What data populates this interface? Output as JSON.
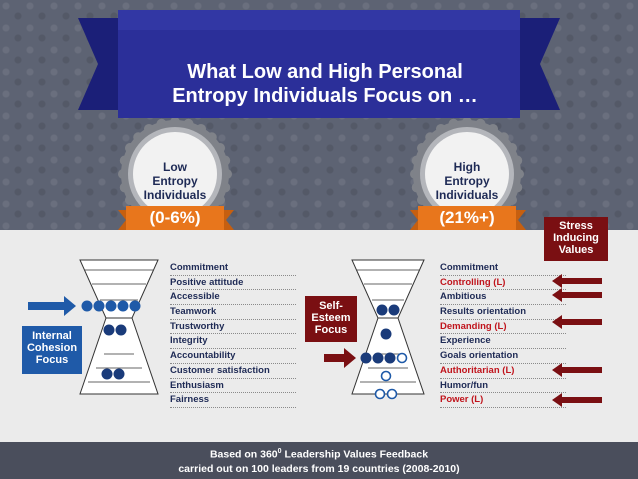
{
  "title": {
    "line1": "What Low and High Personal",
    "line2": "Entropy Individuals Focus on …"
  },
  "low_seal": {
    "line1": "Low",
    "line2": "Entropy",
    "line3": "Individuals",
    "range": "(0-6%)"
  },
  "high_seal": {
    "line1": "High",
    "line2": "Entropy",
    "line3": "Individuals",
    "range": "(21%+)"
  },
  "stress_box": {
    "line1": "Stress",
    "line2": "Inducing",
    "line3": "Values"
  },
  "internal_box": {
    "line1": "Internal",
    "line2": "Cohesion",
    "line3": "Focus"
  },
  "self_box": {
    "line1": "Self-",
    "line2": "Esteem",
    "line3": "Focus"
  },
  "low_values": [
    "Commitment",
    "Positive attitude",
    "Accessible",
    "Teamwork",
    "Trustworthy",
    "Integrity",
    "Accountability",
    "Customer satisfaction",
    "Enthusiasm",
    "Fairness"
  ],
  "high_values": [
    {
      "label": "Commitment",
      "stress": false
    },
    {
      "label": "Controlling (L)",
      "stress": true
    },
    {
      "label": "Ambitious",
      "stress": false
    },
    {
      "label": "Results orientation",
      "stress": false
    },
    {
      "label": "Demanding (L)",
      "stress": true
    },
    {
      "label": "Experience",
      "stress": false
    },
    {
      "label": "Goals orientation",
      "stress": false
    },
    {
      "label": "Authoritarian (L)",
      "stress": true
    },
    {
      "label": "Humor/fun",
      "stress": false
    },
    {
      "label": "Power (L)",
      "stress": true
    }
  ],
  "footer": {
    "line1": "Based on 360",
    "line1_sup": "0",
    "line1_tail": " Leadership Values Feedback",
    "line2": "carried out on 100 leaders from 19 countries (2008-2010)"
  },
  "colors": {
    "navy_text": "#1e2a55",
    "stress_red": "#c0141c",
    "dark_red": "#7a0f12",
    "blue": "#1f5aa8",
    "navy_circle": "#1a3b7a",
    "orange": "#e8761c"
  }
}
